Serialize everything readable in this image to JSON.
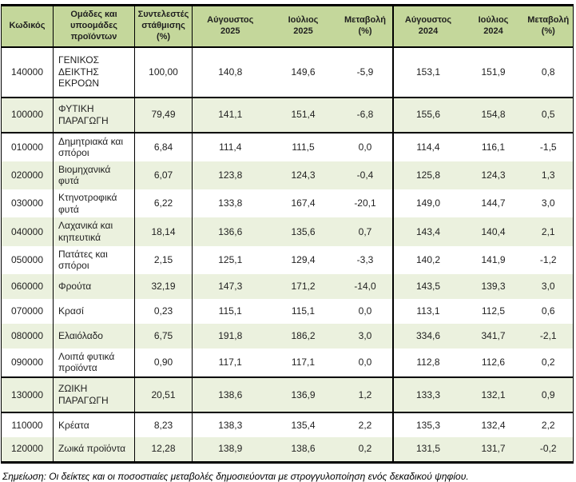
{
  "table": {
    "header_bg": "#c4d79b",
    "stripe_bg": "#ebf1de",
    "columns": [
      {
        "label": "Κωδικός"
      },
      {
        "label": "Ομάδες και\nυποομάδες\nπροϊόντων"
      },
      {
        "label": "Συντελεστές\nστάθμισης\n(%)"
      },
      {
        "label": "Αύγουστος\n2025"
      },
      {
        "label": "Ιούλιος\n2025"
      },
      {
        "label": "Μεταβολή\n(%)"
      },
      {
        "label": "Αύγουστος\n2024"
      },
      {
        "label": "Ιούλιος\n2024"
      },
      {
        "label": "Μεταβολή\n(%)"
      }
    ],
    "rows": [
      {
        "code": "140000",
        "name": "ΓΕΝΙΚΟΣ ΔΕΙΚΤΗΣ ΕΚΡΟΩΝ",
        "weight": "100,00",
        "aug_2025": "140,8",
        "jul_2025": "149,6",
        "change_2025": "-5,9",
        "aug_2024": "153,1",
        "jul_2024": "151,9",
        "change_2024": "0,8",
        "level": "total"
      },
      {
        "code": "100000",
        "name": "ΦΥΤΙΚΗ ΠΑΡΑΓΩΓΗ",
        "weight": "79,49",
        "aug_2025": "141,1",
        "jul_2025": "151,4",
        "change_2025": "-6,8",
        "aug_2024": "155,6",
        "jul_2024": "154,8",
        "change_2024": "0,5",
        "level": "section"
      },
      {
        "code": "010000",
        "name": "Δημητριακά και σπόροι",
        "weight": "6,84",
        "aug_2025": "111,4",
        "jul_2025": "111,5",
        "change_2025": "0,0",
        "aug_2024": "114,4",
        "jul_2024": "116,1",
        "change_2024": "-1,5",
        "level": "detail"
      },
      {
        "code": "020000",
        "name": "Βιομηχανικά φυτά",
        "weight": "6,07",
        "aug_2025": "123,8",
        "jul_2025": "124,3",
        "change_2025": "-0,4",
        "aug_2024": "125,8",
        "jul_2024": "124,3",
        "change_2024": "1,3",
        "level": "detail"
      },
      {
        "code": "030000",
        "name": "Κτηνοτροφικά φυτά",
        "weight": "6,22",
        "aug_2025": "133,8",
        "jul_2025": "167,4",
        "change_2025": "-20,1",
        "aug_2024": "149,0",
        "jul_2024": "144,7",
        "change_2024": "3,0",
        "level": "detail"
      },
      {
        "code": "040000",
        "name": "Λαχανικά και κηπευτικά",
        "weight": "18,14",
        "aug_2025": "136,6",
        "jul_2025": "135,6",
        "change_2025": "0,7",
        "aug_2024": "143,4",
        "jul_2024": "140,4",
        "change_2024": "2,1",
        "level": "detail"
      },
      {
        "code": "050000",
        "name": "Πατάτες και σπόροι",
        "weight": "2,15",
        "aug_2025": "125,1",
        "jul_2025": "129,4",
        "change_2025": "-3,3",
        "aug_2024": "140,2",
        "jul_2024": "141,9",
        "change_2024": "-1,2",
        "level": "detail"
      },
      {
        "code": "060000",
        "name": "Φρούτα",
        "weight": "32,19",
        "aug_2025": "147,3",
        "jul_2025": "171,2",
        "change_2025": "-14,0",
        "aug_2024": "143,5",
        "jul_2024": "139,3",
        "change_2024": "3,0",
        "level": "detail"
      },
      {
        "code": "070000",
        "name": "Κρασί",
        "weight": "0,23",
        "aug_2025": "115,1",
        "jul_2025": "115,1",
        "change_2025": "0,0",
        "aug_2024": "113,1",
        "jul_2024": "112,5",
        "change_2024": "0,6",
        "level": "detail"
      },
      {
        "code": "080000",
        "name": "Ελαιόλαδο",
        "weight": "6,75",
        "aug_2025": "191,8",
        "jul_2025": "186,2",
        "change_2025": "3,0",
        "aug_2024": "334,6",
        "jul_2024": "341,7",
        "change_2024": "-2,1",
        "level": "detail"
      },
      {
        "code": "090000",
        "name": "Λοιπά φυτικά προϊόντα",
        "weight": "0,90",
        "aug_2025": "117,1",
        "jul_2025": "117,1",
        "change_2025": "0,0",
        "aug_2024": "112,8",
        "jul_2024": "112,6",
        "change_2024": "0,2",
        "level": "detail"
      },
      {
        "code": "130000",
        "name": "ΖΩΙΚΗ ΠΑΡΑΓΩΓΗ",
        "weight": "20,51",
        "aug_2025": "138,6",
        "jul_2025": "136,9",
        "change_2025": "1,2",
        "aug_2024": "133,3",
        "jul_2024": "132,1",
        "change_2024": "0,9",
        "level": "section"
      },
      {
        "code": "110000",
        "name": "Κρέατα",
        "weight": "8,23",
        "aug_2025": "138,3",
        "jul_2025": "135,4",
        "change_2025": "2,2",
        "aug_2024": "135,3",
        "jul_2024": "132,4",
        "change_2024": "2,2",
        "level": "detail"
      },
      {
        "code": "120000",
        "name": "Ζωικά προϊόντα",
        "weight": "12,28",
        "aug_2025": "138,9",
        "jul_2025": "138,6",
        "change_2025": "0,2",
        "aug_2024": "131,5",
        "jul_2024": "131,7",
        "change_2024": "-0,2",
        "level": "detail"
      }
    ]
  },
  "footnote": "Σημείωση: Οι δείκτες και οι ποσοστιαίες μεταβολές δημοσιεύονται με στρογγυλοποίηση ενός δεκαδικού ψηφίου."
}
